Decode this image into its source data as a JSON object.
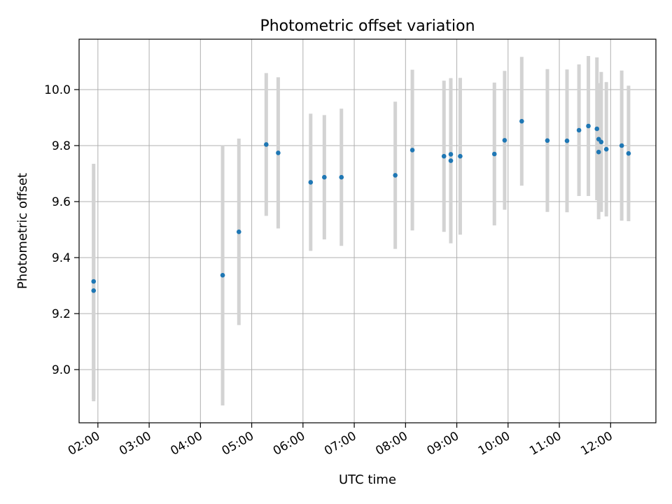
{
  "chart_data": {
    "type": "scatter",
    "title": "Photometric offset variation",
    "xlabel": "UTC time",
    "ylabel": "Photometric offset",
    "grid": true,
    "x_axis": {
      "kind": "time",
      "ticks": [
        "02:00",
        "03:00",
        "04:00",
        "05:00",
        "06:00",
        "07:00",
        "08:00",
        "09:00",
        "10:00",
        "11:00",
        "12:00"
      ],
      "xlim": [
        "01:38",
        "12:53"
      ]
    },
    "y_axis": {
      "ticks": [
        "9.0",
        "9.2",
        "9.4",
        "9.6",
        "9.8",
        "10.0"
      ],
      "ylim": [
        8.81,
        10.18
      ]
    },
    "colors": {
      "points": "#1f77b4",
      "errorbars": "#d3d3d3",
      "grid": "#b0b0b0"
    },
    "series": [
      {
        "points": [
          {
            "x": "01:55",
            "y": 9.315,
            "err": 0.42
          },
          {
            "x": "01:55",
            "y": 9.282,
            "err": 0.395
          },
          {
            "x": "04:26",
            "y": 9.337,
            "err": 0.465
          },
          {
            "x": "04:45",
            "y": 9.492,
            "err": 0.333
          },
          {
            "x": "05:17",
            "y": 9.804,
            "err": 0.255
          },
          {
            "x": "05:31",
            "y": 9.774,
            "err": 0.27
          },
          {
            "x": "06:09",
            "y": 9.669,
            "err": 0.245
          },
          {
            "x": "06:25",
            "y": 9.687,
            "err": 0.222
          },
          {
            "x": "06:45",
            "y": 9.687,
            "err": 0.245
          },
          {
            "x": "07:48",
            "y": 9.694,
            "err": 0.263
          },
          {
            "x": "08:08",
            "y": 9.784,
            "err": 0.287
          },
          {
            "x": "08:45",
            "y": 9.762,
            "err": 0.27
          },
          {
            "x": "08:53",
            "y": 9.769,
            "err": 0.27
          },
          {
            "x": "08:53",
            "y": 9.746,
            "err": 0.295
          },
          {
            "x": "09:04",
            "y": 9.762,
            "err": 0.28
          },
          {
            "x": "09:44",
            "y": 9.77,
            "err": 0.255
          },
          {
            "x": "09:56",
            "y": 9.819,
            "err": 0.248
          },
          {
            "x": "10:16",
            "y": 9.887,
            "err": 0.23
          },
          {
            "x": "10:46",
            "y": 9.818,
            "err": 0.255
          },
          {
            "x": "11:09",
            "y": 9.817,
            "err": 0.255
          },
          {
            "x": "11:23",
            "y": 9.855,
            "err": 0.235
          },
          {
            "x": "11:34",
            "y": 9.87,
            "err": 0.25
          },
          {
            "x": "11:44",
            "y": 9.86,
            "err": 0.255
          },
          {
            "x": "11:46",
            "y": 9.777,
            "err": 0.24
          },
          {
            "x": "11:46",
            "y": 9.823,
            "err": 0.2
          },
          {
            "x": "11:49",
            "y": 9.813,
            "err": 0.25
          },
          {
            "x": "11:55",
            "y": 9.787,
            "err": 0.24
          },
          {
            "x": "12:13",
            "y": 9.8,
            "err": 0.268
          },
          {
            "x": "12:21",
            "y": 9.772,
            "err": 0.242
          }
        ]
      }
    ]
  }
}
